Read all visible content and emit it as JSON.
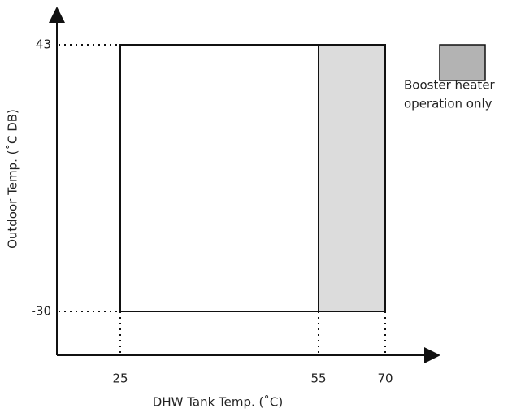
{
  "axes": {
    "x_label": "DHW Tank Temp. (˚C)",
    "y_label": "Outdoor Temp. (˚C DB)",
    "x_ticks": [
      "25",
      "55",
      "70"
    ],
    "y_ticks": [
      "43",
      "-30"
    ]
  },
  "legend": {
    "lines": [
      "Booster heater",
      "operation only"
    ]
  }
}
